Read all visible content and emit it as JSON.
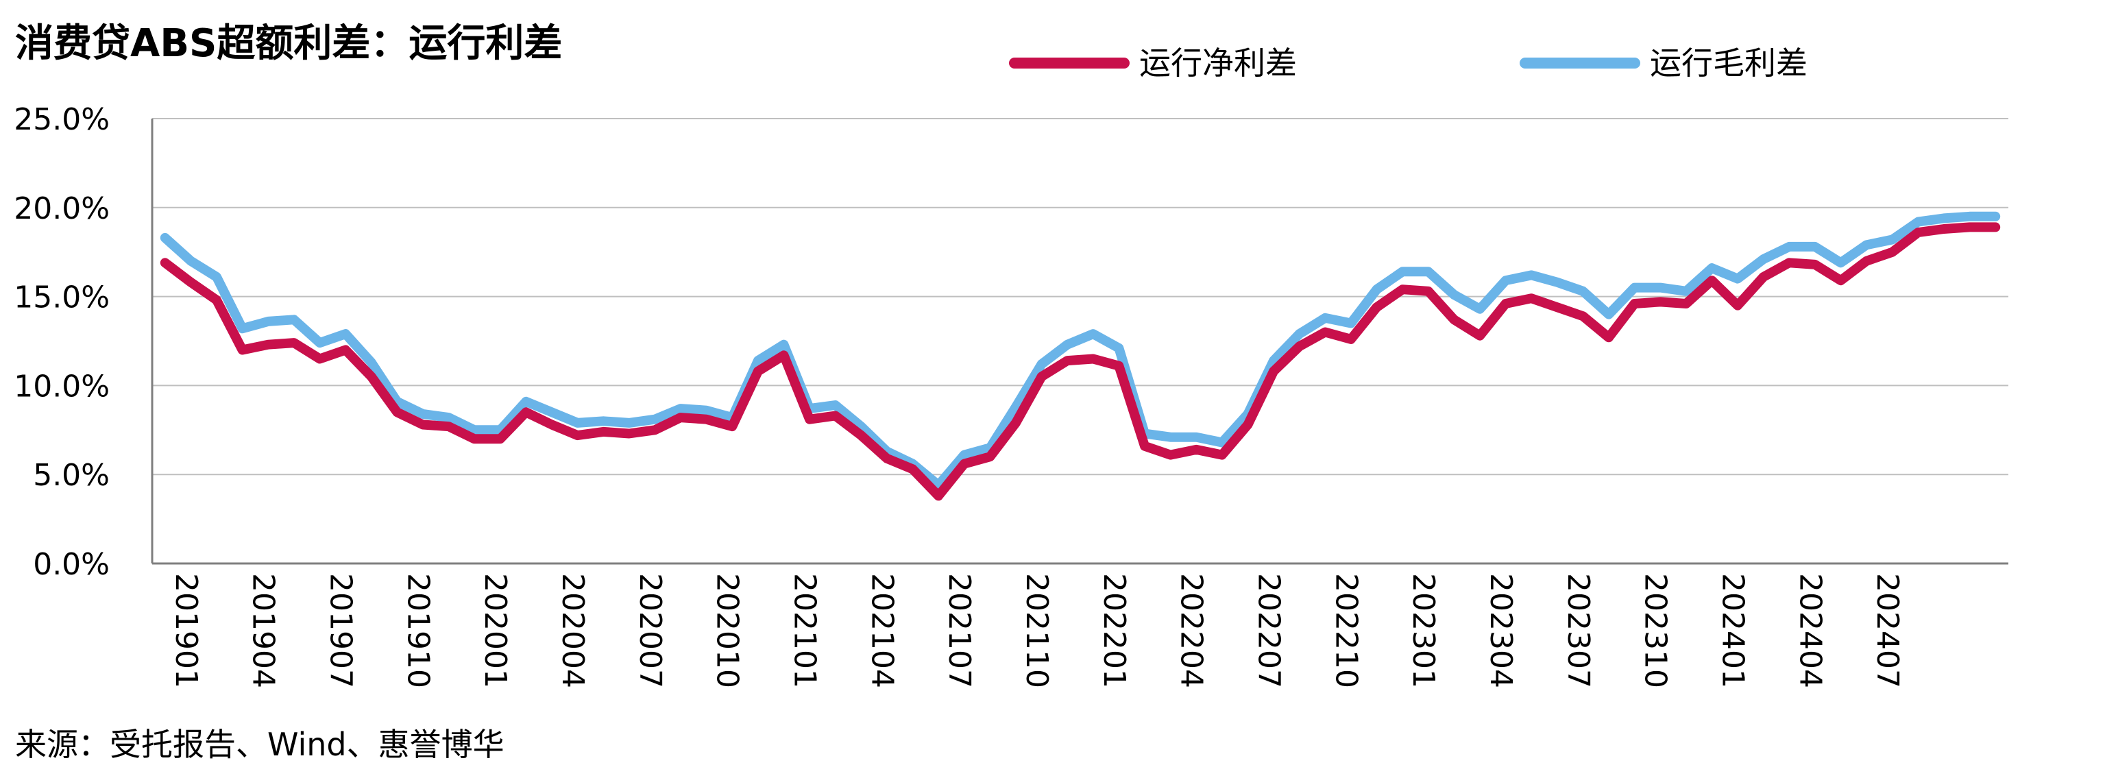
{
  "title": "消费贷ABS超额利差：运行利差",
  "source": "来源：受托报告、Wind、惠誉博华",
  "chart_data": {
    "type": "line",
    "title": "消费贷ABS超额利差：运行利差",
    "xlabel": "",
    "ylabel": "",
    "ylim": [
      0,
      25
    ],
    "yticks": [
      "0.0%",
      "5.0%",
      "10.0%",
      "15.0%",
      "20.0%",
      "25.0%"
    ],
    "grid": true,
    "legend_position": "top",
    "x_tick_labels": [
      "201901",
      "201904",
      "201907",
      "201910",
      "202001",
      "202004",
      "202007",
      "202010",
      "202101",
      "202104",
      "202107",
      "202110",
      "202201",
      "202204",
      "202207",
      "202210",
      "202301",
      "202304",
      "202307",
      "202310",
      "202401",
      "202404",
      "202407"
    ],
    "x": [
      "201901",
      "201902",
      "201903",
      "201904",
      "201905",
      "201906",
      "201907",
      "201908",
      "201909",
      "201910",
      "201911",
      "201912",
      "202001",
      "202002",
      "202003",
      "202004",
      "202005",
      "202006",
      "202007",
      "202008",
      "202009",
      "202010",
      "202011",
      "202012",
      "202101",
      "202102",
      "202103",
      "202104",
      "202105",
      "202106",
      "202107",
      "202108",
      "202109",
      "202110",
      "202111",
      "202112",
      "202201",
      "202202",
      "202203",
      "202204",
      "202205",
      "202206",
      "202207",
      "202208",
      "202209",
      "202210",
      "202211",
      "202212",
      "202301",
      "202302",
      "202303",
      "202304",
      "202305",
      "202306",
      "202307",
      "202308",
      "202309",
      "202310",
      "202311",
      "202312",
      "202401",
      "202402",
      "202403",
      "202404",
      "202405",
      "202406",
      "202407",
      "202408",
      "202409",
      "202410",
      "202411",
      "202412"
    ],
    "series": [
      {
        "name": "运行净利差",
        "color": "#C8104B",
        "values": [
          16.9,
          15.8,
          14.8,
          12.0,
          12.3,
          12.4,
          11.5,
          12.0,
          10.5,
          8.5,
          7.8,
          7.7,
          7.0,
          7.0,
          8.5,
          7.8,
          7.2,
          7.4,
          7.3,
          7.5,
          8.2,
          8.1,
          7.7,
          10.8,
          11.7,
          8.1,
          8.3,
          7.2,
          5.9,
          5.3,
          3.8,
          5.6,
          6.0,
          7.9,
          10.5,
          11.4,
          11.5,
          11.1,
          6.6,
          6.1,
          6.4,
          6.1,
          7.8,
          10.8,
          12.2,
          13.0,
          12.6,
          14.4,
          15.4,
          15.3,
          13.7,
          12.8,
          14.6,
          14.9,
          14.4,
          13.9,
          12.7,
          14.6,
          14.7,
          14.6,
          15.9,
          14.5,
          16.1,
          16.9,
          16.8,
          15.9,
          17.0,
          17.5,
          18.6,
          18.8,
          18.9,
          18.9
        ]
      },
      {
        "name": "运行毛利差",
        "color": "#6AB4E8",
        "values": [
          18.3,
          17.0,
          16.1,
          13.2,
          13.6,
          13.7,
          12.4,
          12.9,
          11.3,
          9.1,
          8.4,
          8.2,
          7.5,
          7.5,
          9.1,
          8.5,
          7.9,
          8.0,
          7.9,
          8.1,
          8.7,
          8.6,
          8.2,
          11.4,
          12.3,
          8.7,
          8.9,
          7.7,
          6.3,
          5.6,
          4.4,
          6.1,
          6.5,
          8.8,
          11.2,
          12.3,
          12.9,
          12.1,
          7.3,
          7.1,
          7.1,
          6.8,
          8.4,
          11.4,
          12.9,
          13.8,
          13.5,
          15.4,
          16.4,
          16.4,
          15.1,
          14.3,
          15.9,
          16.2,
          15.8,
          15.3,
          14.0,
          15.5,
          15.5,
          15.3,
          16.6,
          16.0,
          17.1,
          17.8,
          17.8,
          16.9,
          17.9,
          18.2,
          19.2,
          19.4,
          19.5,
          19.5
        ]
      }
    ]
  }
}
